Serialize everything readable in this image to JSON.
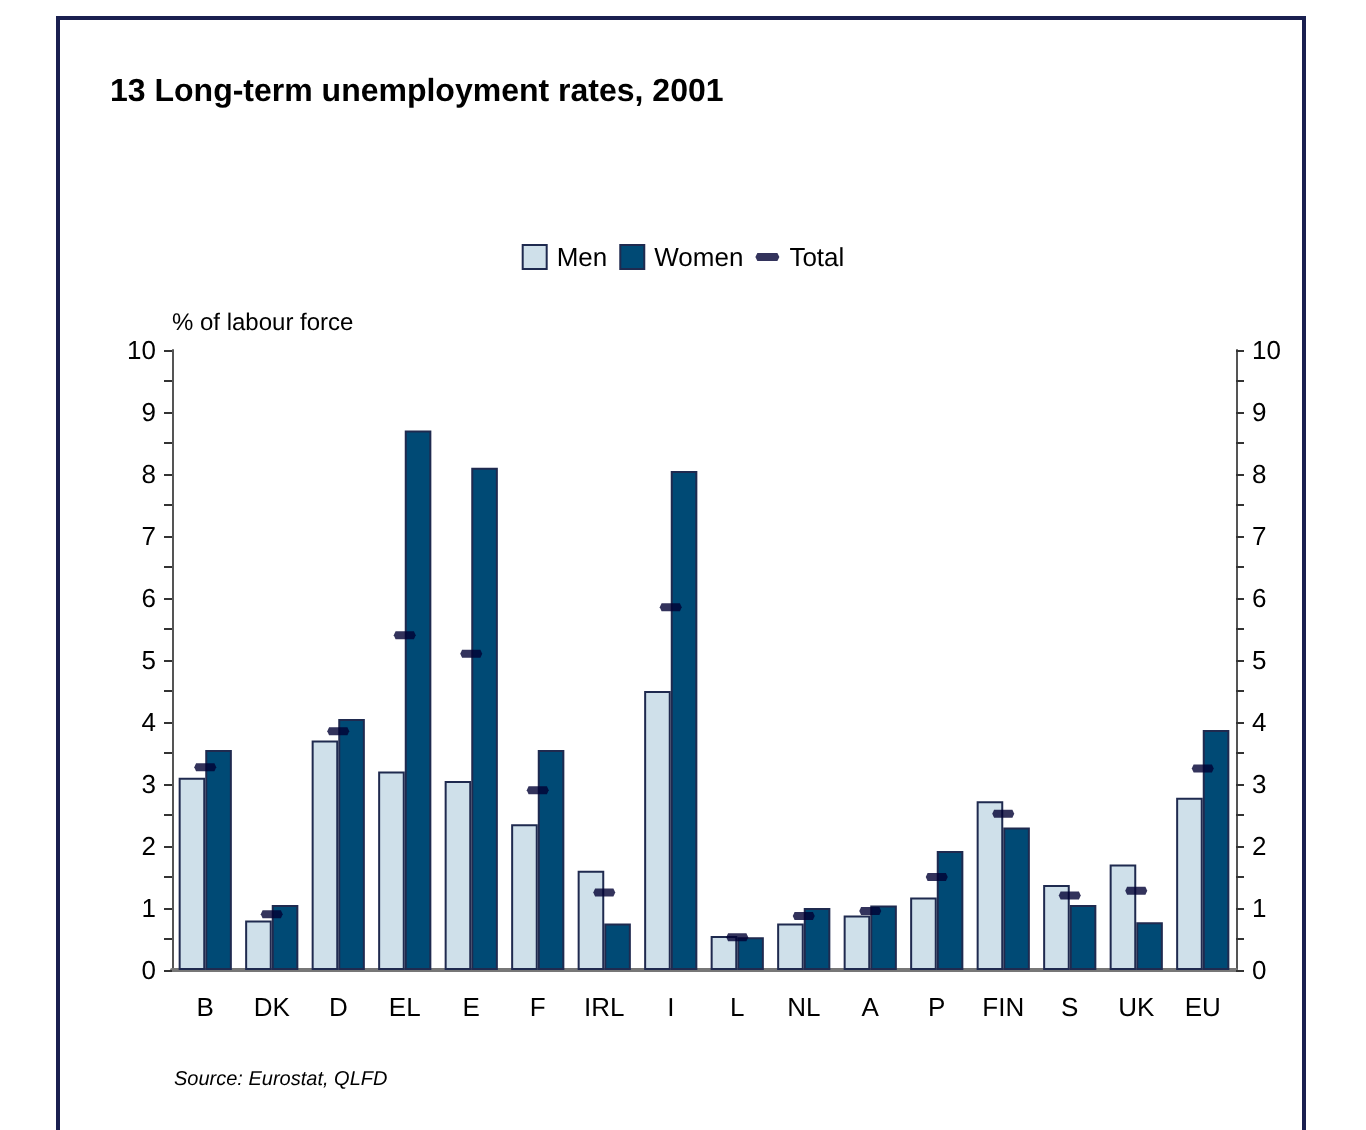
{
  "chart_data": {
    "type": "bar",
    "title": "13 Long-term unemployment rates, 2001",
    "ylabel": "% of labour force",
    "categories": [
      "B",
      "DK",
      "D",
      "EL",
      "E",
      "F",
      "IRL",
      "I",
      "L",
      "NL",
      "A",
      "P",
      "FIN",
      "S",
      "UK",
      "EU"
    ],
    "series": [
      {
        "name": "Men",
        "color": "#cfe0ea",
        "values": [
          3.1,
          0.8,
          3.7,
          3.2,
          3.05,
          2.35,
          1.6,
          4.5,
          0.55,
          0.75,
          0.88,
          1.17,
          2.72,
          1.37,
          1.7,
          2.78
        ]
      },
      {
        "name": "Women",
        "color": "#004a75",
        "values": [
          3.55,
          1.05,
          4.05,
          8.7,
          8.1,
          3.55,
          0.75,
          8.05,
          0.53,
          1.0,
          1.04,
          1.92,
          2.3,
          1.05,
          0.77,
          3.87
        ]
      },
      {
        "name": "Total",
        "type": "scatter",
        "color": "#000033",
        "values": [
          3.27,
          0.9,
          3.85,
          5.4,
          5.1,
          2.9,
          1.25,
          5.85,
          0.53,
          0.87,
          0.95,
          1.5,
          2.52,
          1.2,
          1.28,
          3.25
        ]
      }
    ],
    "ylim": [
      0,
      10
    ],
    "yticks": [
      0,
      {
        "value": 0.5,
        "label": null
      },
      1,
      {
        "value": 1.5,
        "label": null
      },
      2,
      {
        "value": 2.5,
        "label": null
      },
      3,
      {
        "value": 3.5,
        "label": null
      },
      4,
      {
        "value": 4.5,
        "label": null
      },
      5,
      {
        "value": 5.5,
        "label": null
      },
      6,
      {
        "value": 6.5,
        "label": null
      },
      7,
      {
        "value": 7.5,
        "label": null
      },
      8,
      {
        "value": 8.5,
        "label": null
      },
      9,
      {
        "value": 9.5,
        "label": null
      },
      10
    ],
    "y2lim": [
      0,
      10
    ],
    "y2ticks": [
      0,
      {
        "value": 0.5,
        "label": null
      },
      1,
      {
        "value": 1.5,
        "label": null
      },
      2,
      {
        "value": 2.5,
        "label": null
      },
      3,
      {
        "value": 3.5,
        "label": null
      },
      4,
      {
        "value": 4.5,
        "label": null
      },
      5,
      {
        "value": 5.5,
        "label": null
      },
      6,
      {
        "value": 6.5,
        "label": null
      },
      7,
      {
        "value": 7.5,
        "label": null
      },
      8,
      {
        "value": 8.5,
        "label": null
      },
      9,
      {
        "value": 9.5,
        "label": null
      },
      10
    ],
    "legend": "top",
    "grid": false,
    "annotations": [
      "Source: Eurostat, QLFD"
    ]
  }
}
